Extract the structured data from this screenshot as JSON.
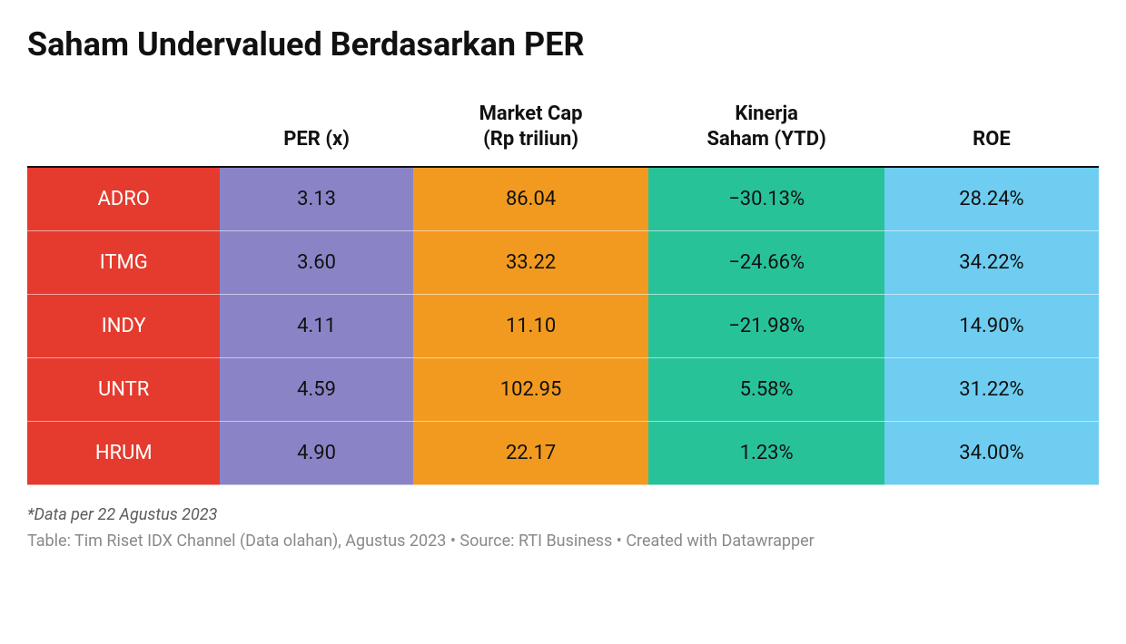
{
  "title": "Saham Undervalued Berdasarkan PER",
  "table": {
    "columns": [
      {
        "label": "",
        "bg": "#e53a2e",
        "text": "#ffffff",
        "width": "18%"
      },
      {
        "label": "PER (x)",
        "bg": "#8a84c7",
        "text": "#111111",
        "width": "18%"
      },
      {
        "label": "Market Cap\n(Rp triliun)",
        "bg": "#f29a1f",
        "text": "#111111",
        "width": "22%"
      },
      {
        "label": "Kinerja\nSaham (YTD)",
        "bg": "#28c299",
        "text": "#111111",
        "width": "22%"
      },
      {
        "label": "ROE",
        "bg": "#6ecdf0",
        "text": "#111111",
        "width": "20%"
      }
    ],
    "rows": [
      [
        "ADRO",
        "3.13",
        "86.04",
        "−30.13%",
        "28.24%"
      ],
      [
        "ITMG",
        "3.60",
        "33.22",
        "−24.66%",
        "34.22%"
      ],
      [
        "INDY",
        "4.11",
        "11.10",
        "−21.98%",
        "14.90%"
      ],
      [
        "UNTR",
        "4.59",
        "102.95",
        "5.58%",
        "31.22%"
      ],
      [
        "HRUM",
        "4.90",
        "22.17",
        "1.23%",
        "34.00%"
      ]
    ]
  },
  "footnote": "*Data per 22 Agustus 2023",
  "credits": "Table: Tim Riset IDX Channel (Data olahan), Agustus 2023 • Source: RTI Business  • Created with Datawrapper",
  "style": {
    "title_fontsize": 36,
    "header_fontsize": 22,
    "cell_fontsize": 22,
    "footnote_fontsize": 18,
    "header_border_color": "#111111",
    "row_separator_color": "rgba(255,255,255,0.55)",
    "background": "#ffffff"
  }
}
